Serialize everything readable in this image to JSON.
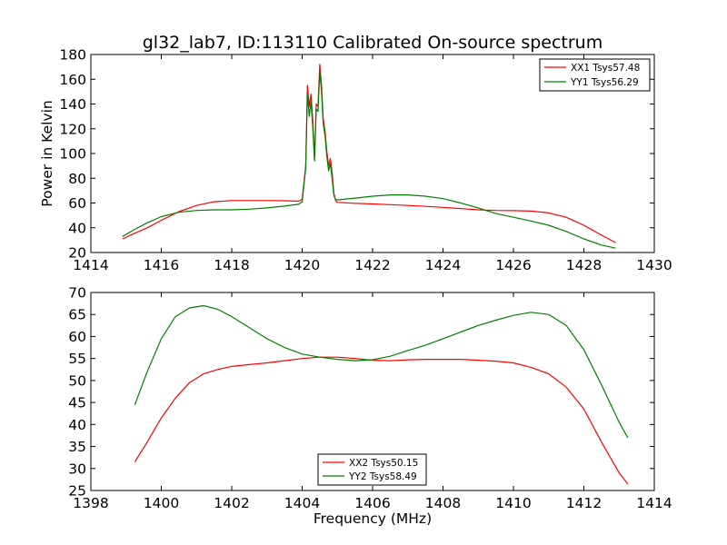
{
  "chart_data": [
    {
      "type": "line",
      "title": "gl32_lab7, ID:113110 Calibrated On-source spectrum",
      "xlabel": "",
      "ylabel": "Power in Kelvin",
      "xlim": [
        1414,
        1430
      ],
      "ylim": [
        20,
        180
      ],
      "xticks": [
        1414,
        1416,
        1418,
        1420,
        1422,
        1424,
        1426,
        1428,
        1430
      ],
      "yticks": [
        20,
        40,
        60,
        80,
        100,
        120,
        140,
        160,
        180
      ],
      "legend": "top-right",
      "grid": false,
      "series": [
        {
          "name": "XX1 Tsys57.48",
          "color": "#ff0000",
          "x": [
            1414.9,
            1415.2,
            1415.6,
            1416.0,
            1416.5,
            1417.0,
            1417.5,
            1418.0,
            1418.5,
            1419.0,
            1419.5,
            1419.9,
            1420.0,
            1420.1,
            1420.15,
            1420.2,
            1420.25,
            1420.3,
            1420.35,
            1420.4,
            1420.45,
            1420.5,
            1420.55,
            1420.6,
            1420.65,
            1420.7,
            1420.75,
            1420.8,
            1420.85,
            1420.9,
            1420.95,
            1421.0,
            1421.5,
            1422.0,
            1422.5,
            1423.0,
            1423.5,
            1424.0,
            1424.5,
            1425.0,
            1425.5,
            1426.0,
            1426.5,
            1427.0,
            1427.5,
            1428.0,
            1428.5,
            1428.9
          ],
          "y": [
            31,
            35,
            40,
            46,
            53,
            58,
            61,
            62,
            62,
            62,
            61.8,
            61.5,
            63,
            90,
            155,
            138,
            148,
            128,
            96,
            140,
            138,
            172,
            155,
            128,
            118,
            102,
            90,
            96,
            85,
            68,
            62,
            60.5,
            59.8,
            59.3,
            58.7,
            58,
            57.3,
            56.5,
            55.5,
            54.5,
            54,
            53.8,
            53.5,
            52,
            48.5,
            42,
            34,
            28
          ]
        },
        {
          "name": "YY1 Tsys56.29",
          "color": "#008000",
          "x": [
            1414.9,
            1415.2,
            1415.6,
            1416.0,
            1416.5,
            1417.0,
            1417.5,
            1418.0,
            1418.5,
            1419.0,
            1419.5,
            1419.9,
            1420.0,
            1420.1,
            1420.15,
            1420.2,
            1420.25,
            1420.3,
            1420.35,
            1420.4,
            1420.45,
            1420.5,
            1420.55,
            1420.6,
            1420.65,
            1420.7,
            1420.75,
            1420.8,
            1420.85,
            1420.9,
            1420.95,
            1421.0,
            1421.5,
            1422.0,
            1422.5,
            1423.0,
            1423.5,
            1424.0,
            1424.5,
            1425.0,
            1425.5,
            1426.0,
            1426.5,
            1427.0,
            1427.5,
            1428.0,
            1428.5,
            1428.9
          ],
          "y": [
            33,
            38,
            44,
            49,
            52.5,
            54,
            54.5,
            54.5,
            55,
            56,
            57.5,
            59,
            61,
            88,
            148,
            130,
            142,
            122,
            94,
            136,
            134,
            166,
            150,
            124,
            114,
            98,
            86,
            92,
            80,
            66,
            63,
            62.5,
            64,
            65.5,
            66.5,
            66.5,
            65.5,
            63.5,
            60,
            56,
            51.5,
            48.5,
            45.5,
            42,
            37,
            31,
            26,
            23.5
          ]
        }
      ]
    },
    {
      "type": "line",
      "title": "",
      "xlabel": "Frequency (MHz)",
      "ylabel": "",
      "xlim": [
        1398,
        1414
      ],
      "ylim": [
        25,
        70
      ],
      "xticks": [
        1398,
        1400,
        1402,
        1404,
        1406,
        1408,
        1410,
        1412,
        1414
      ],
      "yticks": [
        25,
        30,
        35,
        40,
        45,
        50,
        55,
        60,
        65,
        70
      ],
      "legend": "bottom-center",
      "grid": false,
      "series": [
        {
          "name": "XX2 Tsys50.15",
          "color": "#ff0000",
          "x": [
            1399.25,
            1399.6,
            1400.0,
            1400.4,
            1400.8,
            1401.2,
            1401.6,
            1402.0,
            1402.5,
            1403.0,
            1403.5,
            1404.0,
            1404.5,
            1405.0,
            1405.5,
            1406.0,
            1406.5,
            1407.0,
            1407.5,
            1408.0,
            1408.5,
            1409.0,
            1409.5,
            1410.0,
            1410.5,
            1411.0,
            1411.5,
            1412.0,
            1412.5,
            1413.0,
            1413.25
          ],
          "y": [
            31.5,
            36,
            41.5,
            46,
            49.5,
            51.5,
            52.5,
            53.2,
            53.6,
            54,
            54.5,
            55,
            55.3,
            55.3,
            55,
            54.6,
            54.5,
            54.7,
            54.8,
            54.8,
            54.8,
            54.6,
            54.4,
            54,
            53,
            51.5,
            48.5,
            43.5,
            36,
            29,
            26.5
          ]
        },
        {
          "name": "YY2 Tsys58.49",
          "color": "#008000",
          "x": [
            1399.25,
            1399.6,
            1400.0,
            1400.4,
            1400.8,
            1401.2,
            1401.6,
            1402.0,
            1402.5,
            1403.0,
            1403.5,
            1404.0,
            1404.5,
            1405.0,
            1405.5,
            1406.0,
            1406.5,
            1407.0,
            1407.5,
            1408.0,
            1408.5,
            1409.0,
            1409.5,
            1410.0,
            1410.5,
            1411.0,
            1411.5,
            1412.0,
            1412.5,
            1413.0,
            1413.25
          ],
          "y": [
            44.5,
            52,
            59.5,
            64.5,
            66.5,
            67,
            66.2,
            64.5,
            62,
            59.5,
            57.5,
            56,
            55.3,
            54.8,
            54.5,
            54.7,
            55.5,
            56.8,
            58,
            59.5,
            61,
            62.5,
            63.7,
            64.8,
            65.5,
            65,
            62.5,
            57,
            49,
            40.5,
            37
          ]
        }
      ]
    }
  ]
}
